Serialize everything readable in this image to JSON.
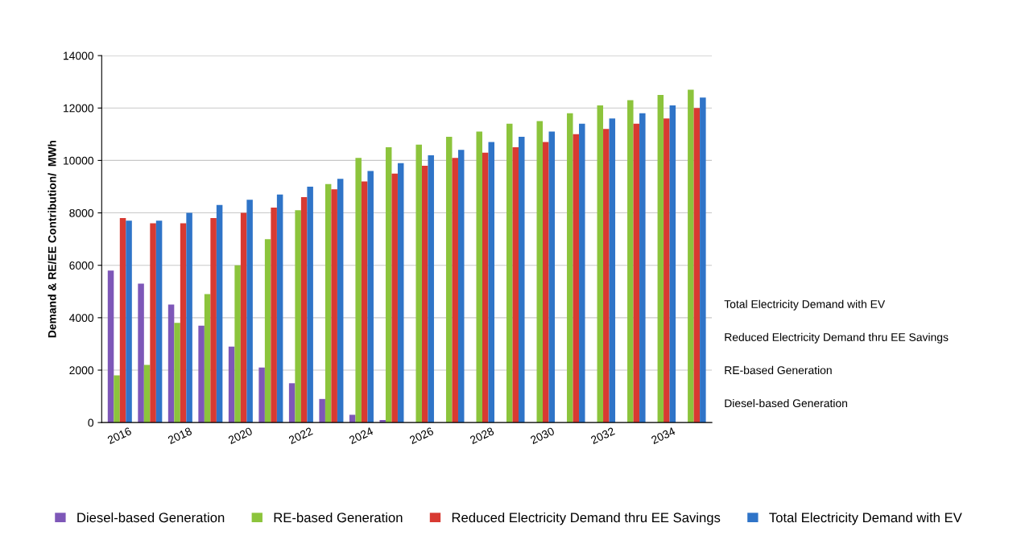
{
  "chart_data": {
    "type": "bar",
    "ylabel": "Demand & RE/EE Contribution/  MWh",
    "categories": [
      "2016",
      null,
      "2018",
      null,
      "2020",
      null,
      "2022",
      null,
      "2024",
      null,
      "2026",
      null,
      "2028",
      null,
      "2030",
      null,
      "2032",
      null,
      "2034",
      null
    ],
    "series": [
      {
        "name": "Diesel-based Generation",
        "color": "#7e57b8",
        "values": [
          5800,
          5300,
          4500,
          3700,
          2900,
          2100,
          1500,
          900,
          300,
          100,
          null,
          null,
          null,
          null,
          null,
          null,
          null,
          null,
          null,
          null
        ]
      },
      {
        "name": "RE-based Generation",
        "color": "#8cc43c",
        "values": [
          1800,
          2200,
          3800,
          4900,
          6000,
          7000,
          8100,
          9100,
          10100,
          10500,
          10600,
          10900,
          11100,
          11400,
          11500,
          11800,
          12100,
          12300,
          12500,
          12700
        ]
      },
      {
        "name": "Reduced Electricity Demand thru EE Savings",
        "color": "#d83a32",
        "values": [
          7800,
          7600,
          7600,
          7800,
          8000,
          8200,
          8600,
          8900,
          9200,
          9500,
          9800,
          10100,
          10300,
          10500,
          10700,
          11000,
          11200,
          11400,
          11600,
          12000
        ]
      },
      {
        "name": "Total Electricity Demand with EV",
        "color": "#2f74c8",
        "values": [
          7700,
          7700,
          8000,
          8300,
          8500,
          8700,
          9000,
          9300,
          9600,
          9900,
          10200,
          10400,
          10700,
          10900,
          11100,
          11400,
          11600,
          11800,
          12100,
          12400
        ]
      }
    ],
    "ylim": [
      0,
      14000
    ],
    "yticks": [
      0,
      2000,
      4000,
      6000,
      8000,
      10000,
      12000,
      14000
    ],
    "grid": "y",
    "legend": "bottom"
  }
}
